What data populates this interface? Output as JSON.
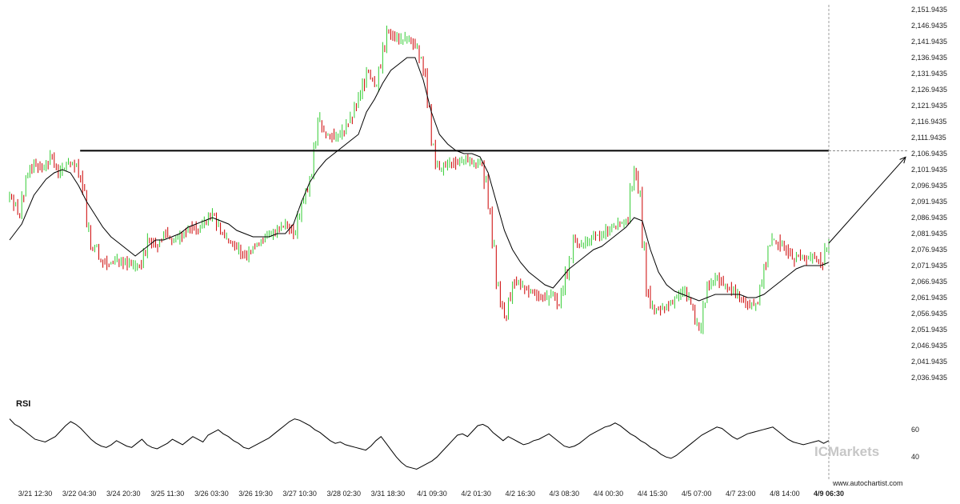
{
  "chart_data": [
    {
      "type": "candlestick",
      "title": "",
      "y_ticks": [
        "2,151.9435",
        "2,146.9435",
        "2,141.9435",
        "2,136.9435",
        "2,131.9435",
        "2,126.9435",
        "2,121.9435",
        "2,116.9435",
        "2,111.9435",
        "2,106.9435",
        "2,101.9435",
        "2,096.9435",
        "2,091.9435",
        "2,086.9435",
        "2,081.9435",
        "2,076.9435",
        "2,071.9435",
        "2,066.9435",
        "2,061.9435",
        "2,056.9435",
        "2,051.9435",
        "2,046.9435",
        "2,041.9435",
        "2,036.9435"
      ],
      "ylim": [
        2035.0,
        2153.0
      ],
      "x_ticks": [
        "3/21 12:30",
        "3/22 04:30",
        "3/24 20:30",
        "3/25 11:30",
        "3/26 03:30",
        "3/26 19:30",
        "3/27 10:30",
        "3/28 02:30",
        "3/31 18:30",
        "4/1 09:30",
        "4/2 01:30",
        "4/2 16:30",
        "4/3 08:30",
        "4/4 00:30",
        "4/4 15:30",
        "4/5 07:00",
        "4/7 23:00",
        "4/8 14:00",
        "4/9 06:30"
      ],
      "current_x_label": "4/9 06:30",
      "bullish_color": "#33cc33",
      "bearish_color": "#cc0000",
      "price_path": [
        [
          0,
          2094
        ],
        [
          2,
          2088
        ],
        [
          4,
          2100
        ],
        [
          6,
          2104
        ],
        [
          8,
          2102
        ],
        [
          10,
          2106
        ],
        [
          12,
          2101
        ],
        [
          14,
          2104
        ],
        [
          16,
          2103
        ],
        [
          17,
          2100
        ],
        [
          18,
          2096
        ],
        [
          19,
          2084
        ],
        [
          20,
          2077
        ],
        [
          21,
          2078
        ],
        [
          22,
          2074
        ],
        [
          24,
          2072
        ],
        [
          26,
          2074
        ],
        [
          28,
          2073
        ],
        [
          30,
          2072
        ],
        [
          32,
          2072
        ],
        [
          34,
          2080
        ],
        [
          36,
          2078
        ],
        [
          38,
          2082
        ],
        [
          40,
          2080
        ],
        [
          42,
          2081
        ],
        [
          44,
          2084
        ],
        [
          46,
          2083
        ],
        [
          48,
          2086
        ],
        [
          50,
          2088
        ],
        [
          52,
          2082
        ],
        [
          54,
          2080
        ],
        [
          56,
          2077
        ],
        [
          58,
          2075
        ],
        [
          60,
          2078
        ],
        [
          62,
          2080
        ],
        [
          64,
          2082
        ],
        [
          66,
          2083
        ],
        [
          68,
          2085
        ],
        [
          70,
          2082
        ],
        [
          72,
          2092
        ],
        [
          74,
          2100
        ],
        [
          75,
          2110
        ],
        [
          76,
          2118
        ],
        [
          77,
          2114
        ],
        [
          78,
          2113
        ],
        [
          80,
          2112
        ],
        [
          82,
          2114
        ],
        [
          84,
          2118
        ],
        [
          86,
          2125
        ],
        [
          88,
          2133
        ],
        [
          90,
          2128
        ],
        [
          92,
          2140
        ],
        [
          93,
          2145
        ],
        [
          94,
          2144
        ],
        [
          96,
          2143
        ],
        [
          98,
          2142
        ],
        [
          100,
          2141
        ],
        [
          101,
          2137
        ],
        [
          102,
          2132
        ],
        [
          103,
          2122
        ],
        [
          104,
          2110
        ],
        [
          105,
          2103
        ],
        [
          106,
          2102
        ],
        [
          108,
          2104
        ],
        [
          110,
          2104
        ],
        [
          112,
          2105
        ],
        [
          114,
          2104
        ],
        [
          116,
          2104
        ],
        [
          117,
          2098
        ],
        [
          118,
          2090
        ],
        [
          119,
          2078
        ],
        [
          120,
          2066
        ],
        [
          121,
          2060
        ],
        [
          122,
          2056
        ],
        [
          123,
          2062
        ],
        [
          124,
          2066
        ],
        [
          126,
          2066
        ],
        [
          128,
          2064
        ],
        [
          130,
          2063
        ],
        [
          132,
          2062
        ],
        [
          134,
          2063
        ],
        [
          135,
          2060
        ],
        [
          136,
          2064
        ],
        [
          137,
          2070
        ],
        [
          138,
          2074
        ],
        [
          139,
          2080
        ],
        [
          140,
          2078
        ],
        [
          142,
          2079
        ],
        [
          144,
          2081
        ],
        [
          146,
          2082
        ],
        [
          148,
          2084
        ],
        [
          150,
          2085
        ],
        [
          152,
          2086
        ],
        [
          153,
          2096
        ],
        [
          154,
          2101
        ],
        [
          155,
          2095
        ],
        [
          156,
          2078
        ],
        [
          157,
          2064
        ],
        [
          158,
          2059
        ],
        [
          160,
          2058
        ],
        [
          162,
          2060
        ],
        [
          164,
          2062
        ],
        [
          166,
          2064
        ],
        [
          168,
          2060
        ],
        [
          169,
          2054
        ],
        [
          170,
          2052
        ],
        [
          171,
          2060
        ],
        [
          172,
          2066
        ],
        [
          174,
          2068
        ],
        [
          176,
          2066
        ],
        [
          178,
          2064
        ],
        [
          180,
          2062
        ],
        [
          182,
          2060
        ],
        [
          184,
          2060
        ],
        [
          185,
          2066
        ],
        [
          186,
          2072
        ],
        [
          187,
          2078
        ],
        [
          188,
          2080
        ],
        [
          190,
          2078
        ],
        [
          192,
          2076
        ],
        [
          193,
          2074
        ],
        [
          194,
          2075
        ],
        [
          196,
          2074
        ],
        [
          198,
          2075
        ],
        [
          200,
          2073
        ],
        [
          201,
          2077
        ],
        [
          202,
          2079
        ]
      ],
      "moving_average_path": [
        [
          0,
          2080
        ],
        [
          3,
          2085
        ],
        [
          6,
          2094
        ],
        [
          9,
          2099
        ],
        [
          11,
          2101
        ],
        [
          13,
          2102
        ],
        [
          15,
          2101
        ],
        [
          17,
          2097
        ],
        [
          19,
          2092
        ],
        [
          21,
          2088
        ],
        [
          23,
          2084
        ],
        [
          25,
          2081
        ],
        [
          27,
          2079
        ],
        [
          29,
          2077
        ],
        [
          31,
          2075
        ],
        [
          32,
          2076
        ],
        [
          34,
          2078
        ],
        [
          36,
          2080
        ],
        [
          38,
          2080
        ],
        [
          40,
          2081
        ],
        [
          42,
          2082
        ],
        [
          44,
          2084
        ],
        [
          46,
          2085
        ],
        [
          48,
          2086
        ],
        [
          50,
          2087
        ],
        [
          52,
          2086
        ],
        [
          54,
          2085
        ],
        [
          56,
          2083
        ],
        [
          58,
          2082
        ],
        [
          60,
          2081
        ],
        [
          62,
          2081
        ],
        [
          64,
          2081
        ],
        [
          66,
          2082
        ],
        [
          68,
          2082
        ],
        [
          70,
          2085
        ],
        [
          72,
          2092
        ],
        [
          74,
          2098
        ],
        [
          76,
          2102
        ],
        [
          78,
          2105
        ],
        [
          80,
          2107
        ],
        [
          82,
          2109
        ],
        [
          84,
          2111
        ],
        [
          86,
          2113
        ],
        [
          88,
          2120
        ],
        [
          90,
          2124
        ],
        [
          92,
          2129
        ],
        [
          94,
          2133
        ],
        [
          96,
          2135
        ],
        [
          98,
          2137
        ],
        [
          100,
          2137
        ],
        [
          102,
          2130
        ],
        [
          104,
          2120
        ],
        [
          106,
          2113
        ],
        [
          108,
          2110
        ],
        [
          110,
          2108
        ],
        [
          112,
          2107
        ],
        [
          114,
          2107
        ],
        [
          116,
          2106
        ],
        [
          118,
          2101
        ],
        [
          120,
          2092
        ],
        [
          122,
          2083
        ],
        [
          124,
          2077
        ],
        [
          126,
          2073
        ],
        [
          128,
          2070
        ],
        [
          130,
          2068
        ],
        [
          132,
          2066
        ],
        [
          134,
          2065
        ],
        [
          136,
          2068
        ],
        [
          138,
          2071
        ],
        [
          140,
          2073
        ],
        [
          142,
          2075
        ],
        [
          144,
          2077
        ],
        [
          146,
          2078
        ],
        [
          148,
          2080
        ],
        [
          150,
          2082
        ],
        [
          152,
          2084
        ],
        [
          154,
          2087
        ],
        [
          156,
          2086
        ],
        [
          158,
          2077
        ],
        [
          160,
          2070
        ],
        [
          162,
          2066
        ],
        [
          164,
          2064
        ],
        [
          166,
          2063
        ],
        [
          168,
          2062
        ],
        [
          170,
          2061
        ],
        [
          172,
          2062
        ],
        [
          174,
          2063
        ],
        [
          176,
          2063
        ],
        [
          178,
          2063
        ],
        [
          180,
          2063
        ],
        [
          182,
          2062
        ],
        [
          184,
          2062
        ],
        [
          186,
          2063
        ],
        [
          188,
          2065
        ],
        [
          190,
          2067
        ],
        [
          192,
          2069
        ],
        [
          194,
          2071
        ],
        [
          196,
          2072
        ],
        [
          198,
          2072
        ],
        [
          200,
          2072
        ],
        [
          202,
          2073
        ]
      ],
      "resistance_level": 2107.9,
      "resistance_start": 17,
      "projection_target": 2105.9
    },
    {
      "type": "line",
      "title": "RSI",
      "y_ticks": [
        "60",
        "40"
      ],
      "ylim": [
        26,
        76
      ],
      "series": [
        {
          "values": [
            68,
            64,
            62,
            59,
            56,
            53,
            52,
            51,
            53,
            55,
            59,
            63,
            66,
            64,
            61,
            57,
            53,
            50,
            48,
            47,
            49,
            52,
            50,
            48,
            47,
            50,
            53,
            49,
            47,
            46,
            48,
            50,
            53,
            51,
            49,
            52,
            55,
            53,
            51,
            56,
            58,
            60,
            57,
            55,
            52,
            50,
            47,
            46,
            48,
            50,
            52,
            54,
            57,
            60,
            63,
            66,
            68,
            67,
            65,
            63,
            60,
            58,
            55,
            52,
            50,
            51,
            49,
            48,
            47,
            46,
            45,
            48,
            52,
            55,
            50,
            45,
            40,
            36,
            33,
            32,
            31,
            33,
            35,
            37,
            40,
            44,
            48,
            52,
            56,
            57,
            55,
            59,
            63,
            64,
            62,
            58,
            55,
            52,
            55,
            53,
            51,
            49,
            50,
            52,
            53,
            55,
            57,
            54,
            51,
            48,
            47,
            48,
            50,
            53,
            56,
            58,
            60,
            62,
            63,
            65,
            63,
            60,
            57,
            55,
            52,
            50,
            47,
            45,
            42,
            40,
            39,
            41,
            44,
            47,
            50,
            53,
            56,
            58,
            60,
            62,
            61,
            58,
            55,
            53,
            55,
            57,
            58,
            59,
            60,
            61,
            62,
            59,
            56,
            53,
            51,
            50,
            49,
            50,
            51,
            52,
            50,
            52
          ]
        }
      ]
    }
  ],
  "watermark": "ICMarkets",
  "source_label": "www.autochartist.com"
}
